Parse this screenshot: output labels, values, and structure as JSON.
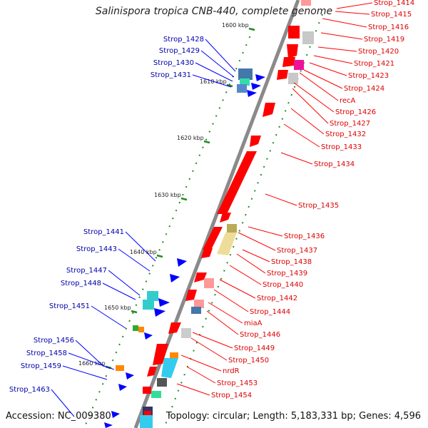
{
  "title": "Salinispora tropica CNB-440, complete genome",
  "accession": "Accession: NC_009380",
  "topology": "Topology: circular; Length: 5,183,331 bp; Genes: 4,596",
  "colors": {
    "forward_label": "#0000aa",
    "reverse_label": "#dd0000",
    "gene_red": "#ff0000",
    "backbone": "#8a8a8a"
  },
  "kbp_ticks": [
    "1600 kbp",
    "1610 kbp",
    "1620 kbp",
    "1630 kbp",
    "1640 kbp",
    "1650 kbp",
    "1660 kbp"
  ],
  "left_labels": [
    "Strop_1428",
    "Strop_1429",
    "Strop_1430",
    "Strop_1431",
    "Strop_1441",
    "Strop_1443",
    "Strop_1447",
    "Strop_1448",
    "Strop_1451",
    "Strop_1456",
    "Strop_1458",
    "Strop_1459",
    "Strop_1463"
  ],
  "right_labels": [
    "Strop_1414",
    "Strop_1415",
    "Strop_1416",
    "Strop_1419",
    "Strop_1420",
    "Strop_1421",
    "Strop_1423",
    "Strop_1424",
    "recA",
    "Strop_1426",
    "Strop_1427",
    "Strop_1432",
    "Strop_1433",
    "Strop_1434",
    "Strop_1435",
    "Strop_1436",
    "Strop_1437",
    "Strop_1438",
    "Strop_1439",
    "Strop_1440",
    "Strop_1442",
    "Strop_1444",
    "miaA",
    "Strop_1446",
    "Strop_1449",
    "Strop_1450",
    "nrdR",
    "Strop_1453",
    "Strop_1454"
  ]
}
